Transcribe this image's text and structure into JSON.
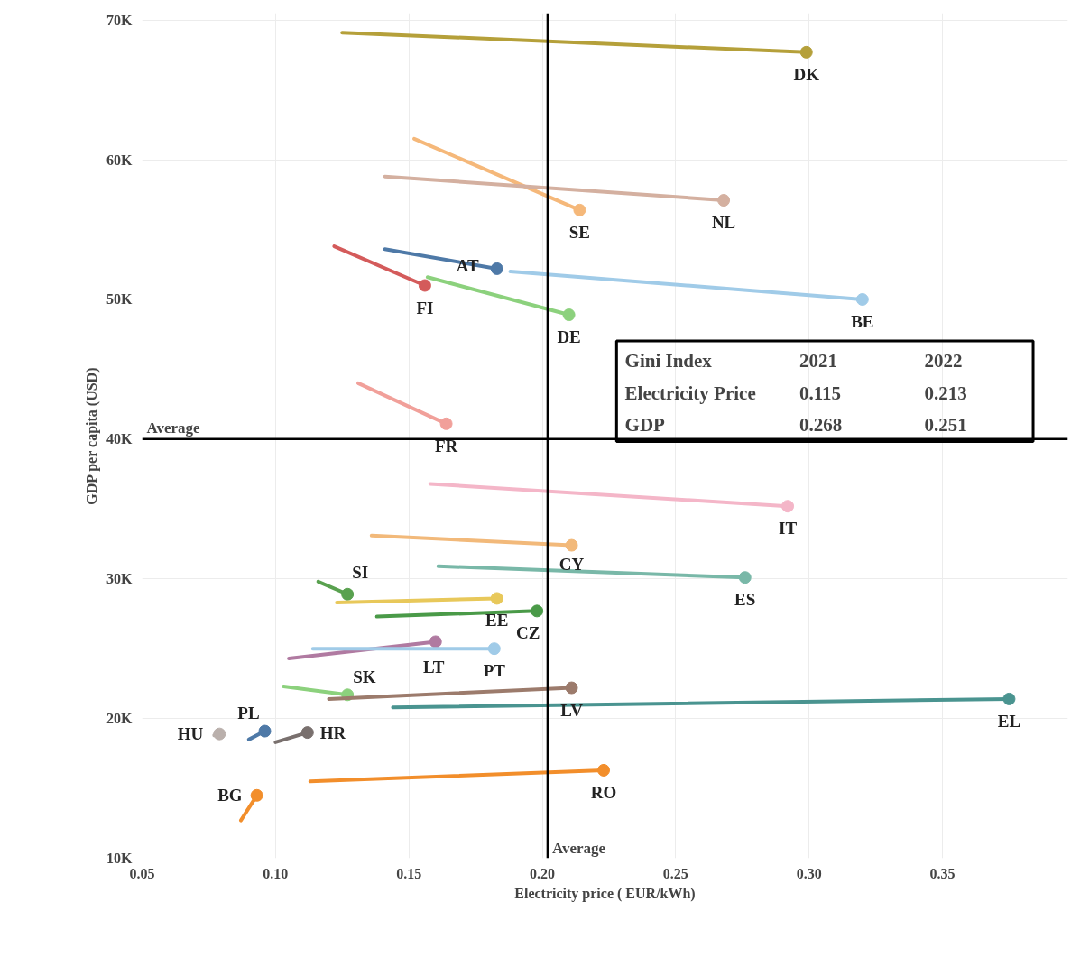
{
  "chart_data": {
    "type": "line",
    "xlabel": "Electricity price ( EUR/kWh)",
    "ylabel": "GDP per capita (USD)",
    "xlim": [
      0.05,
      0.397
    ],
    "ylim": [
      10000,
      70500
    ],
    "xticks": [
      {
        "value": 0.05,
        "label": "0.05"
      },
      {
        "value": 0.1,
        "label": "0.10"
      },
      {
        "value": 0.15,
        "label": "0.15"
      },
      {
        "value": 0.2,
        "label": "0.20"
      },
      {
        "value": 0.25,
        "label": "0.25"
      },
      {
        "value": 0.3,
        "label": "0.30"
      },
      {
        "value": 0.35,
        "label": "0.35"
      }
    ],
    "yticks": [
      {
        "value": 10000,
        "label": "10K"
      },
      {
        "value": 20000,
        "label": "20K"
      },
      {
        "value": 30000,
        "label": "30K"
      },
      {
        "value": 40000,
        "label": "40K"
      },
      {
        "value": 50000,
        "label": "50K"
      },
      {
        "value": 60000,
        "label": "60K"
      },
      {
        "value": 70000,
        "label": "70K"
      }
    ],
    "grid": true,
    "marker": "circle",
    "line_style": "solid",
    "ref_lines": [
      {
        "axis": "x",
        "value": 0.202,
        "label": "Average",
        "color": "#000000"
      },
      {
        "axis": "y",
        "value": 40000,
        "label": "Average",
        "color": "#000000"
      }
    ],
    "annotations": [
      "Gini Index",
      "2021",
      "2022",
      "Electricity Price",
      "0.115",
      "0.213",
      "GDP",
      "0.268",
      "0.251"
    ],
    "series": [
      {
        "name": "DK",
        "color": "#b5a03a",
        "x": [
          0.125,
          0.299
        ],
        "values": [
          69100,
          67700
        ]
      },
      {
        "name": "SE",
        "color": "#f5b87a",
        "x": [
          0.152,
          0.214
        ],
        "values": [
          61500,
          56400
        ]
      },
      {
        "name": "NL",
        "color": "#d4b0a0",
        "x": [
          0.141,
          0.268
        ],
        "values": [
          58800,
          57100
        ]
      },
      {
        "name": "AT",
        "color": "#4e79a7",
        "x": [
          0.141,
          0.183
        ],
        "values": [
          53600,
          52200
        ]
      },
      {
        "name": "BE",
        "color": "#a0cbe8",
        "x": [
          0.188,
          0.32
        ],
        "values": [
          52000,
          50000
        ]
      },
      {
        "name": "FI",
        "color": "#d45b5b",
        "x": [
          0.122,
          0.156
        ],
        "values": [
          53800,
          51000
        ]
      },
      {
        "name": "DE",
        "color": "#8cd17d",
        "x": [
          0.157,
          0.21
        ],
        "values": [
          51600,
          48900
        ]
      },
      {
        "name": "FR",
        "color": "#f1a09a",
        "x": [
          0.131,
          0.164
        ],
        "values": [
          44000,
          41100
        ]
      },
      {
        "name": "IT",
        "color": "#f4b6c8",
        "x": [
          0.158,
          0.292
        ],
        "values": [
          36800,
          35200
        ]
      },
      {
        "name": "CY",
        "color": "#f2b97a",
        "x": [
          0.136,
          0.211
        ],
        "values": [
          33100,
          32400
        ]
      },
      {
        "name": "ES",
        "color": "#79b8a8",
        "x": [
          0.161,
          0.276
        ],
        "values": [
          30900,
          30100
        ]
      },
      {
        "name": "SI",
        "color": "#59a14f",
        "x": [
          0.116,
          0.127
        ],
        "values": [
          29800,
          28900
        ]
      },
      {
        "name": "EE",
        "color": "#e8c85a",
        "x": [
          0.123,
          0.183
        ],
        "values": [
          28300,
          28600
        ]
      },
      {
        "name": "CZ",
        "color": "#4a9a48",
        "x": [
          0.138,
          0.198
        ],
        "values": [
          27300,
          27700
        ]
      },
      {
        "name": "LT",
        "color": "#b07aa1",
        "x": [
          0.105,
          0.16
        ],
        "values": [
          24300,
          25500
        ]
      },
      {
        "name": "PT",
        "color": "#a0cbe8",
        "x": [
          0.114,
          0.182
        ],
        "values": [
          25000,
          25000
        ]
      },
      {
        "name": "SK",
        "color": "#8cd17d",
        "x": [
          0.103,
          0.127
        ],
        "values": [
          22300,
          21700
        ]
      },
      {
        "name": "LV",
        "color": "#9c7b6c",
        "x": [
          0.12,
          0.211
        ],
        "values": [
          21400,
          22200
        ]
      },
      {
        "name": "EL",
        "color": "#4a9490",
        "x": [
          0.144,
          0.375
        ],
        "values": [
          20800,
          21400
        ]
      },
      {
        "name": "HU",
        "color": "#bab0ac",
        "x": [
          0.077,
          0.079
        ],
        "values": [
          18800,
          18900
        ]
      },
      {
        "name": "PL",
        "color": "#4e79a7",
        "x": [
          0.09,
          0.096
        ],
        "values": [
          18500,
          19100
        ]
      },
      {
        "name": "HR",
        "color": "#79706e",
        "x": [
          0.1,
          0.112
        ],
        "values": [
          18300,
          19000
        ]
      },
      {
        "name": "RO",
        "color": "#f28e2b",
        "x": [
          0.113,
          0.223
        ],
        "values": [
          15500,
          16300
        ]
      },
      {
        "name": "BG",
        "color": "#f28e2b",
        "x": [
          0.087,
          0.093
        ],
        "values": [
          12700,
          14500
        ]
      }
    ]
  }
}
